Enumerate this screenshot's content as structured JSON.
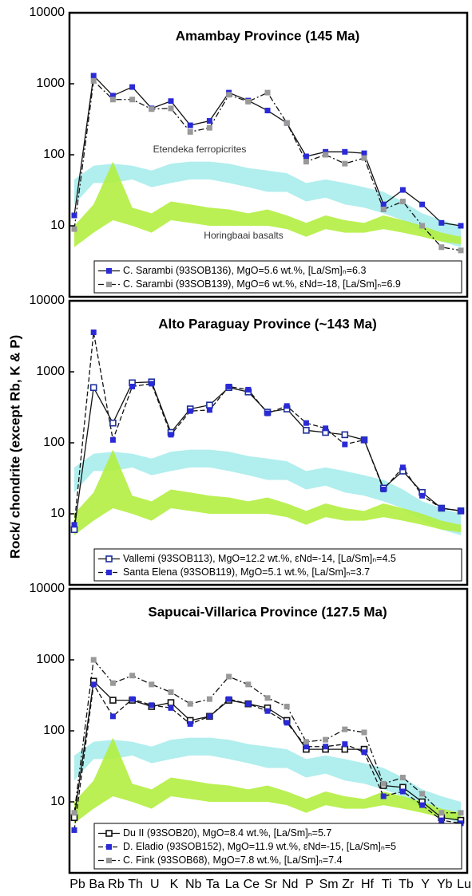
{
  "ylabel": "Rock/ chondrite (except Rb, K & P)",
  "chart_data": [
    {
      "type": "line",
      "title": "Amambay Province (145 Ma)",
      "log_scale": true,
      "categories": [
        "Pb",
        "Ba",
        "Rb",
        "Th",
        "U",
        "K",
        "Nb",
        "Ta",
        "La",
        "Ce",
        "Sr",
        "Nd",
        "P",
        "Sm",
        "Zr",
        "Hf",
        "Ti",
        "Tb",
        "Y",
        "Yb",
        "Lu"
      ],
      "ylim": [
        1,
        10000
      ],
      "yticks": [
        10,
        100,
        1000,
        10000
      ],
      "bands": [
        {
          "name": "Etendeka ferropicrites",
          "color": "#a8ecec",
          "lower": [
            20,
            40,
            40,
            45,
            35,
            40,
            45,
            45,
            40,
            35,
            30,
            30,
            22,
            25,
            20,
            18,
            15,
            12,
            8,
            6,
            5
          ],
          "upper": [
            45,
            70,
            75,
            70,
            60,
            75,
            80,
            80,
            75,
            65,
            60,
            55,
            40,
            45,
            40,
            35,
            30,
            22,
            15,
            12,
            10
          ]
        },
        {
          "name": "Horingbaai basalts",
          "color": "#b2ee40",
          "lower": [
            5,
            8,
            12,
            10,
            8,
            12,
            11,
            10,
            10,
            10,
            10,
            9,
            7,
            9,
            8,
            8,
            9,
            8,
            7,
            6,
            5.5
          ],
          "upper": [
            10,
            20,
            80,
            18,
            15,
            22,
            20,
            18,
            17,
            15,
            17,
            14,
            11,
            14,
            12,
            11,
            14,
            12,
            10,
            8,
            7
          ]
        }
      ],
      "series": [
        {
          "name": "C. Sarambi (93SOB136), MgO=5.6 wt.%, [La/Sm]ₙ=6.3",
          "color": "#2a2ad6",
          "marker": "filled",
          "linestyle": "solid",
          "values": [
            14,
            1300,
            680,
            900,
            450,
            570,
            260,
            300,
            750,
            580,
            420,
            280,
            95,
            110,
            110,
            105,
            20,
            32,
            20,
            11,
            10
          ]
        },
        {
          "name": "C. Sarambi (93SOB139), MgO=6 wt.%, εNd=-18, [La/Sm]ₙ=6.9",
          "color": "#999999",
          "marker": "filled",
          "linestyle": "dashdot",
          "values": [
            9,
            1100,
            600,
            600,
            440,
            450,
            210,
            240,
            700,
            560,
            750,
            280,
            80,
            100,
            75,
            90,
            17,
            22,
            10,
            5,
            4.5
          ]
        }
      ]
    },
    {
      "type": "line",
      "title": "Alto Paraguay Province (~143 Ma)",
      "log_scale": true,
      "categories": [
        "Pb",
        "Ba",
        "Rb",
        "Th",
        "U",
        "K",
        "Nb",
        "Ta",
        "La",
        "Ce",
        "Sr",
        "Nd",
        "P",
        "Sm",
        "Zr",
        "Hf",
        "Ti",
        "Tb",
        "Y",
        "Yb",
        "Lu"
      ],
      "ylim": [
        1,
        10000
      ],
      "yticks": [
        10,
        100,
        1000,
        10000
      ],
      "bands": [
        {
          "color": "#a8ecec",
          "lower": [
            20,
            40,
            40,
            45,
            35,
            40,
            45,
            45,
            40,
            35,
            30,
            30,
            22,
            25,
            20,
            18,
            15,
            12,
            8,
            6,
            5
          ],
          "upper": [
            45,
            70,
            75,
            70,
            60,
            75,
            80,
            80,
            75,
            65,
            60,
            55,
            40,
            45,
            40,
            35,
            30,
            22,
            15,
            12,
            10
          ]
        },
        {
          "color": "#b2ee40",
          "lower": [
            5,
            8,
            12,
            10,
            8,
            12,
            11,
            10,
            10,
            10,
            10,
            9,
            7,
            9,
            8,
            8,
            9,
            8,
            7,
            6,
            5.5
          ],
          "upper": [
            10,
            20,
            80,
            18,
            15,
            22,
            20,
            18,
            17,
            15,
            17,
            14,
            11,
            14,
            12,
            11,
            14,
            12,
            10,
            8,
            7
          ]
        }
      ],
      "series": [
        {
          "name": "Vallemi (93SOB113), MgO=12.2 wt.%, εNd=-14, [La/Sm]ₙ=4.5",
          "color": "#1c2f9a",
          "marker": "open",
          "linestyle": "solid",
          "values": [
            6,
            600,
            190,
            700,
            720,
            140,
            300,
            340,
            600,
            520,
            270,
            300,
            150,
            140,
            130,
            110,
            23,
            40,
            20,
            12,
            11
          ]
        },
        {
          "name": "Santa Elena (93SOB119), MgO=5.1 wt.%, [La/Sm]ₙ=3.7",
          "color": "#2a2ad6",
          "marker": "filled",
          "linestyle": "dashed",
          "values": [
            7,
            3600,
            110,
            620,
            680,
            130,
            280,
            290,
            620,
            560,
            260,
            330,
            190,
            160,
            95,
            110,
            22,
            45,
            18,
            12,
            11
          ]
        }
      ]
    },
    {
      "type": "line",
      "title": "Sapucai-Villarica Province (127.5 Ma)",
      "log_scale": true,
      "categories": [
        "Pb",
        "Ba",
        "Rb",
        "Th",
        "U",
        "K",
        "Nb",
        "Ta",
        "La",
        "Ce",
        "Sr",
        "Nd",
        "P",
        "Sm",
        "Zr",
        "Hf",
        "Ti",
        "Tb",
        "Y",
        "Yb",
        "Lu"
      ],
      "ylim": [
        1,
        10000
      ],
      "yticks": [
        10,
        100,
        1000,
        10000
      ],
      "bands": [
        {
          "color": "#a8ecec",
          "lower": [
            20,
            40,
            40,
            45,
            35,
            40,
            45,
            45,
            40,
            35,
            30,
            30,
            22,
            25,
            20,
            18,
            15,
            12,
            8,
            6,
            5
          ],
          "upper": [
            45,
            70,
            75,
            70,
            60,
            75,
            80,
            80,
            75,
            65,
            60,
            55,
            40,
            45,
            40,
            35,
            30,
            22,
            15,
            12,
            10
          ]
        },
        {
          "color": "#b2ee40",
          "lower": [
            5,
            8,
            12,
            10,
            8,
            12,
            11,
            10,
            10,
            10,
            10,
            9,
            7,
            9,
            8,
            8,
            9,
            8,
            7,
            6,
            5.5
          ],
          "upper": [
            10,
            20,
            80,
            18,
            15,
            22,
            20,
            18,
            17,
            15,
            17,
            14,
            11,
            14,
            12,
            11,
            14,
            12,
            10,
            8,
            7
          ]
        }
      ],
      "series": [
        {
          "name": "Du II (93SOB20), MgO=8.4 wt.%, [La/Sm]ₙ=5.7",
          "color": "#111111",
          "marker": "open",
          "linestyle": "solid",
          "values": [
            6,
            500,
            270,
            270,
            220,
            250,
            140,
            160,
            270,
            240,
            210,
            140,
            55,
            55,
            55,
            55,
            17,
            16,
            10,
            6,
            5.5
          ]
        },
        {
          "name": "D. Eladio (93SOB152), MgO=11.9 wt.%, εNd=-15, [La/Sm]ₙ=5",
          "color": "#2a2ad6",
          "marker": "filled",
          "linestyle": "dashed",
          "values": [
            4,
            450,
            160,
            280,
            230,
            210,
            125,
            160,
            280,
            240,
            190,
            130,
            60,
            60,
            65,
            50,
            12,
            14,
            9,
            5.5,
            5
          ]
        },
        {
          "name": "C. Fink (93SOB68), MgO=7.8 wt.%, [La/Sm]ₙ=7.4",
          "color": "#999999",
          "marker": "filled",
          "linestyle": "dashdot",
          "values": [
            7,
            1000,
            470,
            600,
            450,
            350,
            240,
            280,
            580,
            450,
            290,
            220,
            70,
            75,
            105,
            95,
            18,
            22,
            13,
            7,
            7
          ]
        }
      ]
    }
  ]
}
